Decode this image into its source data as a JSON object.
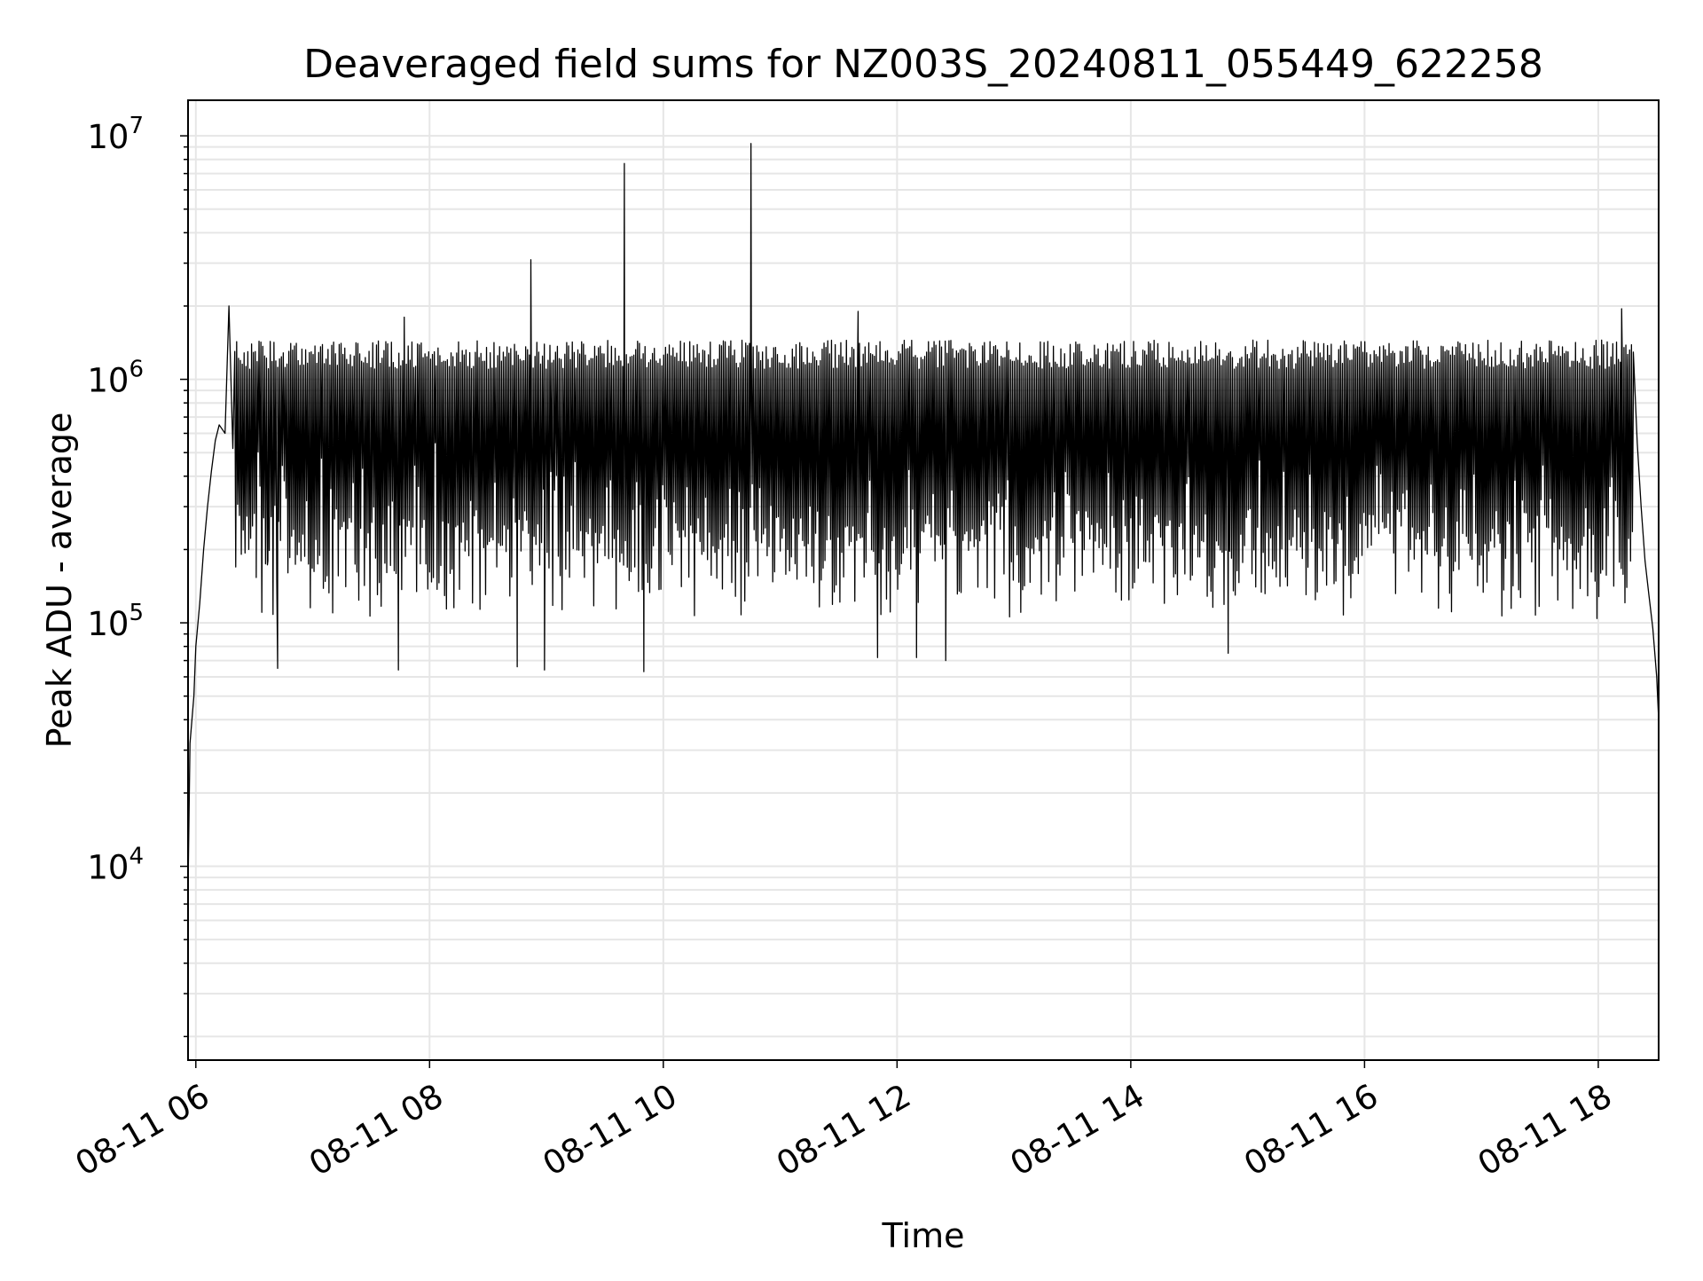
{
  "chart_data": {
    "type": "line",
    "title": "Deaveraged field sums for NZ003S_20240811_055449_622258",
    "xlabel": "Time",
    "ylabel": "Peak ADU - average",
    "yscale": "log",
    "ylim": [
      1600,
      14000000
    ],
    "xlim": [
      "08-11 05:56",
      "08-11 18:31"
    ],
    "grid": true,
    "line_color": "#000000",
    "grid_color": "#e6e6e6",
    "x_ticks": [
      {
        "value": "08-11 06:00",
        "label": "08-11 06"
      },
      {
        "value": "08-11 08:00",
        "label": "08-11 08"
      },
      {
        "value": "08-11 10:00",
        "label": "08-11 10"
      },
      {
        "value": "08-11 12:00",
        "label": "08-11 12"
      },
      {
        "value": "08-11 14:00",
        "label": "08-11 14"
      },
      {
        "value": "08-11 16:00",
        "label": "08-11 16"
      },
      {
        "value": "08-11 18:00",
        "label": "08-11 18"
      }
    ],
    "y_ticks": [
      {
        "value": 10000,
        "base": "10",
        "exp": "4"
      },
      {
        "value": 100000,
        "base": "10",
        "exp": "5"
      },
      {
        "value": 1000000,
        "base": "10",
        "exp": "6"
      },
      {
        "value": 10000000,
        "base": "10",
        "exp": "7"
      }
    ],
    "series": [
      {
        "points": [
          [
            "08-11 05:56",
            8000
          ],
          [
            "08-11 05:57",
            32000
          ],
          [
            "08-11 05:59",
            50000
          ],
          [
            "08-11 06:00",
            80000
          ],
          [
            "08-11 06:02",
            120000
          ],
          [
            "08-11 06:04",
            200000
          ],
          [
            "08-11 06:06",
            300000
          ],
          [
            "08-11 06:08",
            420000
          ],
          [
            "08-11 06:10",
            560000
          ],
          [
            "08-11 06:12",
            650000
          ],
          [
            "08-11 06:15",
            600000
          ],
          [
            "08-11 06:17",
            2000000
          ],
          [
            "08-11 06:19",
            520000
          ],
          [
            "08-11 06:22",
            450000
          ],
          [
            "08-11 06:25",
            350000
          ],
          [
            "08-11 06:28",
            280000
          ],
          [
            "08-11 06:31",
            250000
          ],
          [
            "08-11 06:34",
            200000
          ],
          [
            "08-11 06:37",
            180000
          ],
          [
            "08-11 06:42",
            65000
          ],
          [
            "08-11 07:44",
            64000
          ],
          [
            "08-11 07:47",
            1800000
          ],
          [
            "08-11 08:45",
            66000
          ],
          [
            "08-11 08:52",
            3100000
          ],
          [
            "08-11 08:59",
            64000
          ],
          [
            "08-11 09:40",
            7700000
          ],
          [
            "08-11 09:50",
            63000
          ],
          [
            "08-11 10:45",
            9300000
          ],
          [
            "08-11 11:40",
            1900000
          ],
          [
            "08-11 11:50",
            72000
          ],
          [
            "08-11 12:10",
            72000
          ],
          [
            "08-11 12:25",
            70000
          ],
          [
            "08-11 14:50",
            75000
          ],
          [
            "08-11 18:12",
            1950000
          ],
          [
            "08-11 18:15",
            1100000
          ],
          [
            "08-11 18:18",
            900000
          ],
          [
            "08-11 18:20",
            550000
          ],
          [
            "08-11 18:22",
            300000
          ],
          [
            "08-11 18:24",
            180000
          ],
          [
            "08-11 18:26",
            130000
          ],
          [
            "08-11 18:28",
            95000
          ],
          [
            "08-11 18:30",
            60000
          ],
          [
            "08-11 18:31",
            40000
          ]
        ],
        "envelope": {
          "from": "08-11 06:20",
          "to": "08-11 18:18",
          "typical_peak": [
            1100000,
            1450000
          ],
          "typical_trough": [
            100000,
            250000
          ]
        }
      }
    ]
  }
}
